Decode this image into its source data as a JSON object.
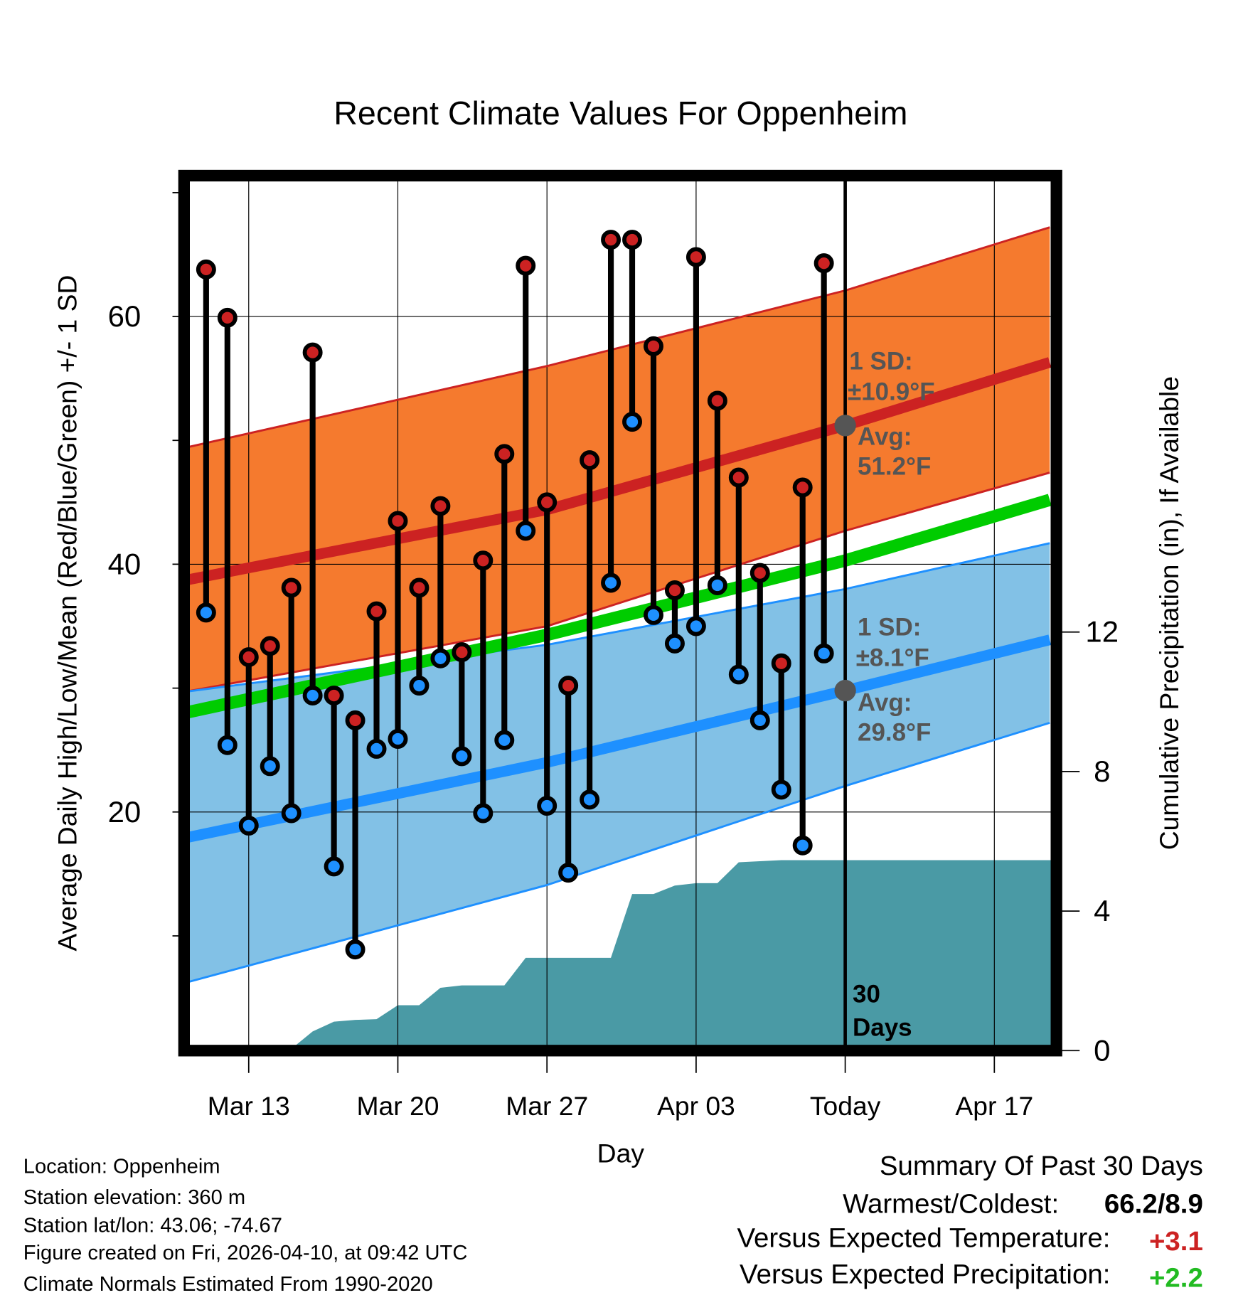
{
  "chart_data": {
    "type": "line",
    "title": "Recent Climate Values For Oppenheim",
    "xlabel": "Day",
    "ylabel": "Average Daily High/Low/Mean (Red/Blue/Green) +/- 1 SD",
    "y2label": "Cumulative Precipitation (in), If Available",
    "x_origin": "Mar 10",
    "xlim_days": [
      0,
      40.6
    ],
    "ylim": [
      1.3,
      70.7
    ],
    "y2lim": [
      0,
      16.5
    ],
    "x_ticks": [
      {
        "day": 3,
        "label": "Mar 13"
      },
      {
        "day": 10,
        "label": "Mar 20"
      },
      {
        "day": 17,
        "label": "Mar 27"
      },
      {
        "day": 24,
        "label": "Apr 03"
      },
      {
        "day": 31,
        "label": "Today"
      },
      {
        "day": 38,
        "label": "Apr 17"
      }
    ],
    "y_ticks": [
      20,
      40,
      60
    ],
    "y_ticks_labels": [
      "20",
      "40",
      "60"
    ],
    "y_minor_ticks": [
      10,
      30,
      50,
      70
    ],
    "y2_ticks": [
      0,
      4,
      8,
      12
    ],
    "y2_ticks_labels": [
      "0",
      "4",
      "8",
      "12"
    ],
    "grid": true,
    "today_day": 31,
    "today_label_line1": "30",
    "today_label_line2": "Days",
    "daily_days": [
      1,
      2,
      3,
      4,
      5,
      6,
      7,
      8,
      9,
      10,
      11,
      12,
      13,
      14,
      15,
      16,
      17,
      18,
      19,
      20,
      21,
      22,
      23,
      24,
      25,
      26,
      27,
      28,
      29,
      30
    ],
    "daily_high": [
      63.8,
      59.9,
      32.5,
      33.4,
      38.1,
      57.1,
      29.4,
      27.4,
      36.2,
      43.5,
      38.1,
      44.7,
      32.9,
      40.3,
      48.9,
      64.1,
      45.0,
      30.2,
      48.4,
      66.2,
      66.2,
      57.6,
      37.9,
      64.8,
      53.2,
      47.0,
      39.3,
      32.0,
      46.2,
      64.3
    ],
    "daily_low": [
      36.1,
      25.4,
      18.9,
      23.7,
      19.9,
      29.4,
      15.6,
      8.9,
      25.1,
      25.9,
      30.2,
      32.4,
      24.5,
      19.9,
      25.8,
      42.7,
      20.5,
      15.1,
      21.0,
      38.5,
      51.5,
      35.9,
      33.6,
      35.0,
      38.3,
      31.1,
      27.4,
      21.8,
      17.3,
      32.8
    ],
    "precip_cumulative": [
      0,
      0,
      0,
      0.05,
      0.05,
      0.55,
      0.83,
      0.88,
      0.9,
      1.3,
      1.3,
      1.8,
      1.87,
      1.87,
      1.87,
      2.66,
      2.66,
      2.66,
      2.66,
      2.66,
      4.49,
      4.49,
      4.73,
      4.8,
      4.8,
      5.4,
      5.43,
      5.46,
      5.46,
      5.46
    ],
    "normals_days": [
      0,
      17,
      31,
      40.6
    ],
    "normal_high_mean": [
      38.7,
      44.4,
      51.2,
      56.3
    ],
    "normal_high_upper": [
      49.4,
      56.0,
      62.1,
      67.2
    ],
    "normal_high_lower": [
      29.7,
      35.0,
      42.7,
      47.4
    ],
    "normal_mean": [
      28.0,
      34.3,
      40.3,
      45.2
    ],
    "normal_low_mean": [
      17.9,
      24.0,
      29.8,
      33.9
    ],
    "normal_low_upper": [
      29.7,
      33.5,
      38.0,
      41.7
    ],
    "normal_low_lower": [
      6.2,
      14.1,
      22.1,
      27.2
    ],
    "annotations": {
      "high_sd_line1": "1 SD:",
      "high_sd_line2": "±10.9°F",
      "high_avg_line1": "Avg:",
      "high_avg_line2": "51.2°F",
      "high_avg_value": 51.2,
      "low_sd_line1": "1 SD:",
      "low_sd_line2": "±8.1°F",
      "low_avg_line1": "Avg:",
      "low_avg_line2": "29.8°F",
      "low_avg_value": 29.8
    },
    "colors": {
      "high": "#cc2222",
      "high_band": "#f57a2e",
      "low": "#1e90ff",
      "low_band": "#82c1e6",
      "mean": "#00cc00",
      "precip": "#4a9aa5",
      "annotation": "#555555"
    }
  },
  "footer": {
    "location": "Location: Oppenheim",
    "elevation": "Station elevation: 360 m",
    "latlon": "Station lat/lon: 43.06; -74.67",
    "created": "Figure created on Fri, 2026-04-10, at 09:42 UTC",
    "normals": "Climate Normals Estimated From 1990-2020"
  },
  "summary": {
    "title": "Summary Of Past 30 Days",
    "warmest_label": "Warmest/Coldest:",
    "warmest_value": "66.2/8.9",
    "temp_label": "Versus Expected Temperature:",
    "temp_value": "+3.1",
    "precip_label": "Versus Expected Precipitation:",
    "precip_value": "+2.2",
    "temp_color": "#cc2222",
    "precip_color": "#22bb22"
  }
}
